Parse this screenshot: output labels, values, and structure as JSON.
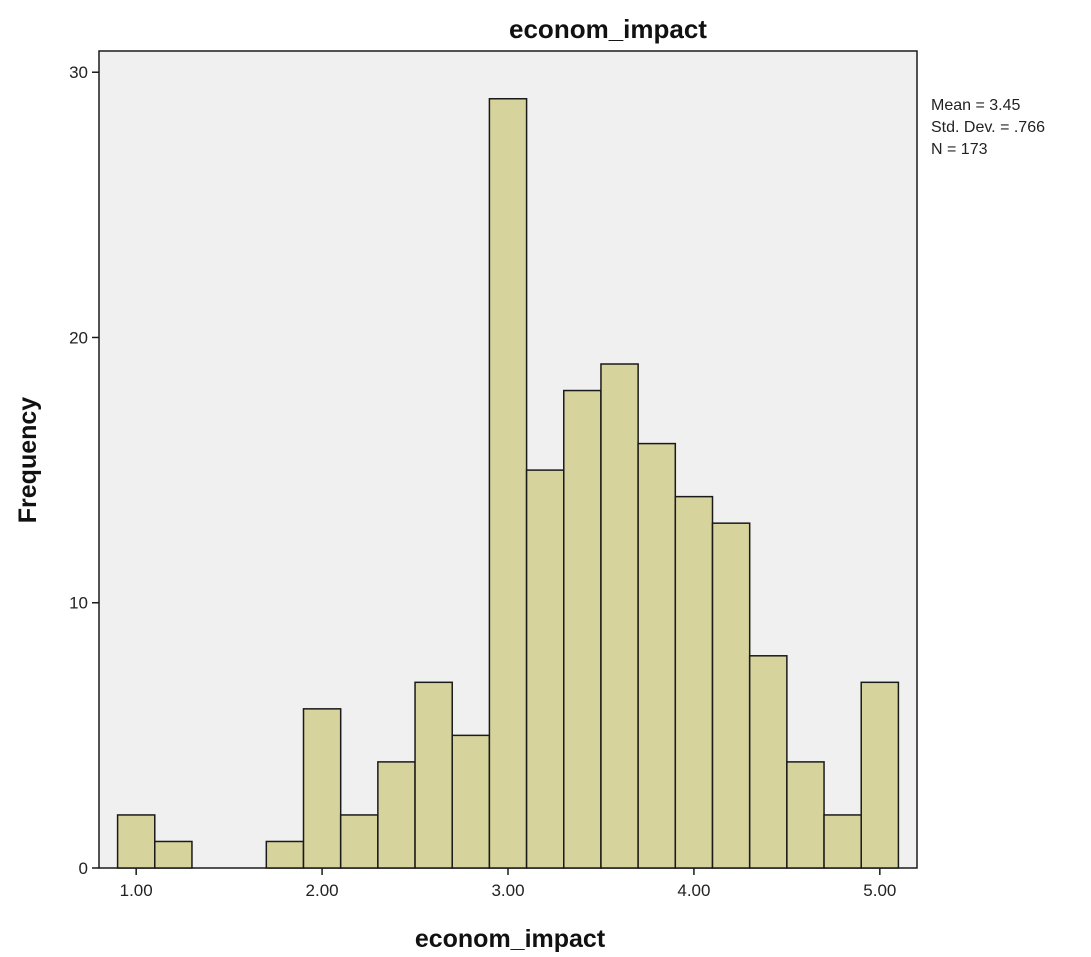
{
  "chart_data": {
    "type": "bar",
    "title": "econom_impact",
    "xlabel": "econom_impact",
    "ylabel": "Frequency",
    "bin_width": 0.2,
    "bin_start": 0.9,
    "bin_end": 5.1,
    "values": [
      2,
      1,
      0,
      0,
      1,
      6,
      2,
      4,
      7,
      5,
      29,
      15,
      18,
      19,
      16,
      14,
      13,
      8,
      4,
      2,
      7
    ],
    "xticks": [
      1,
      2,
      3,
      4,
      5
    ],
    "xtick_labels": [
      "1.00",
      "2.00",
      "3.00",
      "4.00",
      "5.00"
    ],
    "yticks": [
      0,
      10,
      20,
      30
    ],
    "ytick_labels": [
      "0",
      "10",
      "20",
      "30"
    ],
    "ylim": [
      0,
      30.8
    ],
    "xlim": [
      0.8,
      5.2
    ],
    "grid": false,
    "legend": "none",
    "stats": {
      "mean": "Mean = 3.45",
      "std": "Std. Dev. = .766",
      "n": "N = 173"
    },
    "colors": {
      "bar_fill": "#d6d39c",
      "bar_stroke": "#1a1a1a",
      "plot_background": "#f0f0f0",
      "frame": "#1a1a1a"
    }
  }
}
